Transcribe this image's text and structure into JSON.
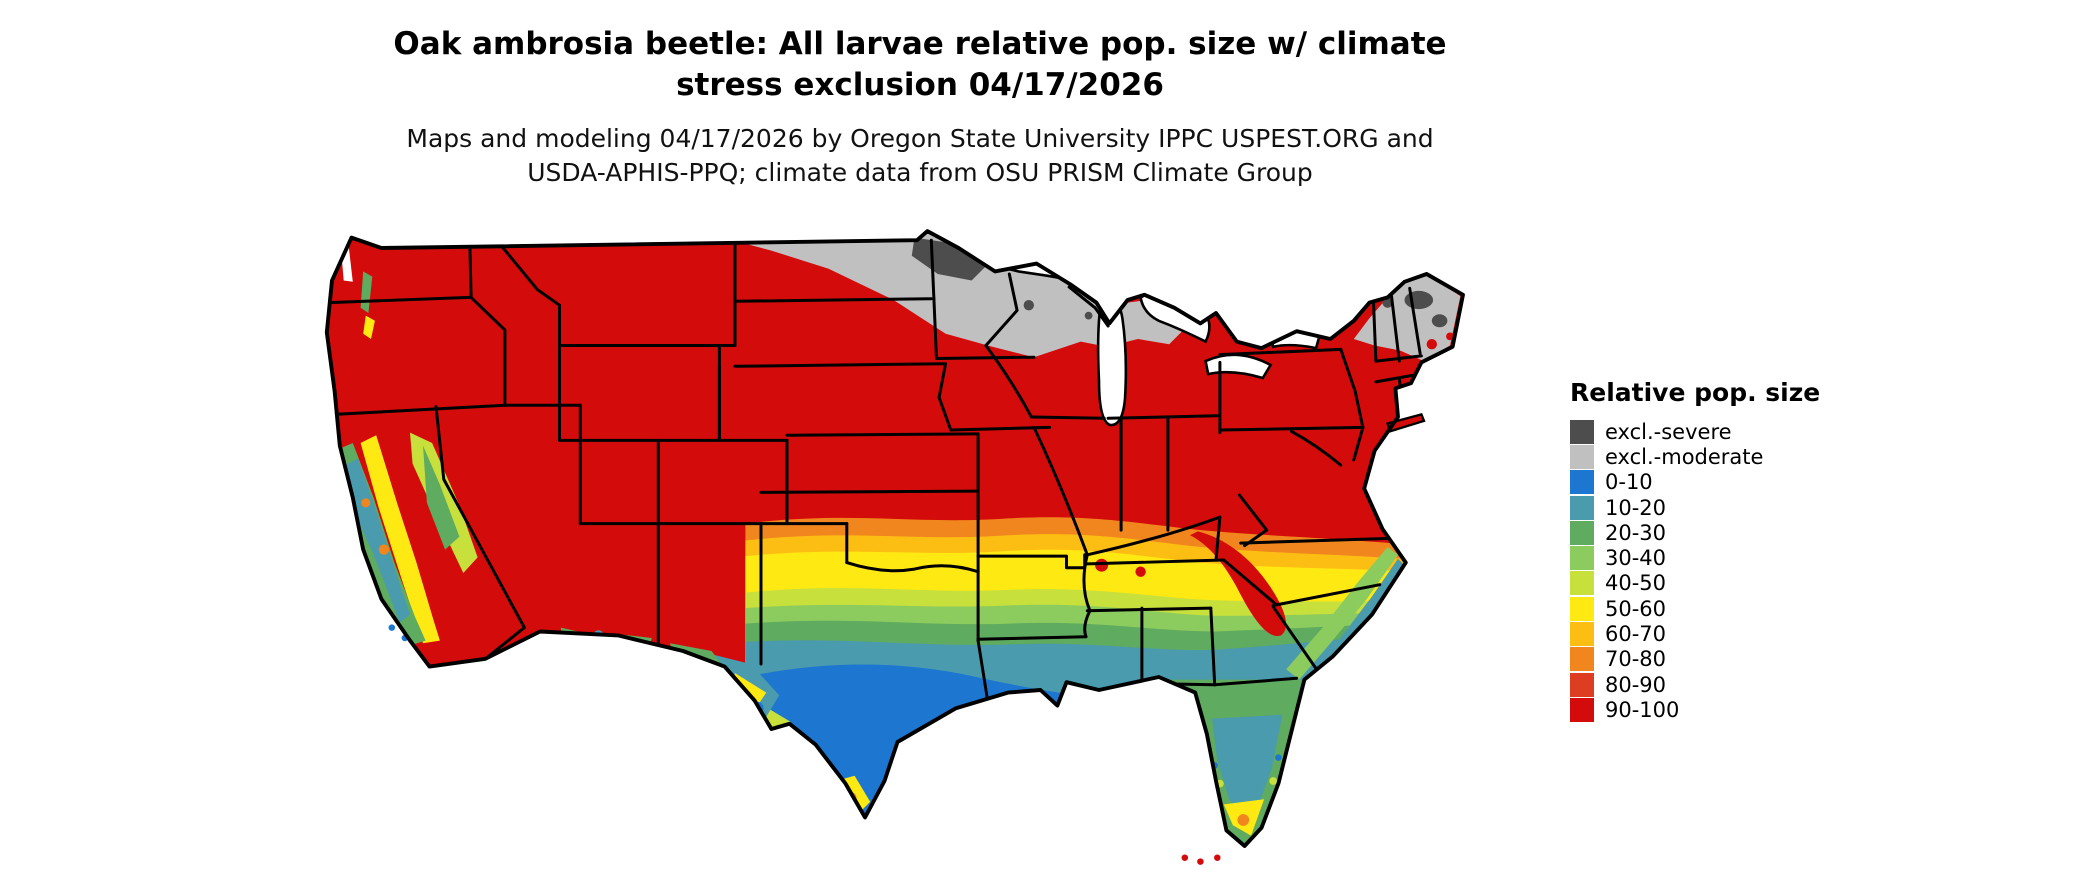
{
  "figure": {
    "title_line1": "Oak ambrosia beetle: All larvae relative pop. size w/ climate",
    "title_line2": "stress exclusion 04/17/2026",
    "subtitle_line1": "Maps and modeling 04/17/2026 by Oregon State University IPPC USPEST.ORG and",
    "subtitle_line2": "USDA-APHIS-PPQ; climate data from OSU PRISM Climate Group"
  },
  "legend": {
    "title": "Relative pop. size",
    "items": [
      {
        "key": "excl_severe",
        "label": "excl.-severe",
        "color": "#4d4d4d"
      },
      {
        "key": "excl_moderate",
        "label": "excl.-moderate",
        "color": "#c0c0c0"
      },
      {
        "key": "r0_10",
        "label": "0-10",
        "color": "#1d76cf"
      },
      {
        "key": "r10_20",
        "label": "10-20",
        "color": "#4a9bae"
      },
      {
        "key": "r20_30",
        "label": "20-30",
        "color": "#5fab5f"
      },
      {
        "key": "r30_40",
        "label": "30-40",
        "color": "#8ccb5e"
      },
      {
        "key": "r40_50",
        "label": "40-50",
        "color": "#c8e03c"
      },
      {
        "key": "r50_60",
        "label": "50-60",
        "color": "#ffe913"
      },
      {
        "key": "r60_70",
        "label": "60-70",
        "color": "#fdbe13"
      },
      {
        "key": "r70_80",
        "label": "70-80",
        "color": "#f0861d"
      },
      {
        "key": "r80_90",
        "label": "80-90",
        "color": "#dd3d20"
      },
      {
        "key": "r90_100",
        "label": "90-100",
        "color": "#d40b0b"
      }
    ]
  },
  "map": {
    "region_label": "Continental United States choropleth of relative population size"
  }
}
